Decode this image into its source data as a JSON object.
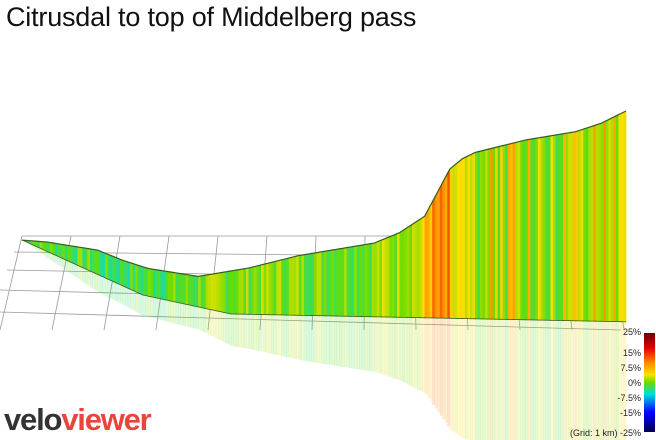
{
  "title": "Citrusdal to top of Middelberg pass",
  "chart_data": {
    "type": "area",
    "title": "Citrusdal to top of Middelberg pass",
    "xlabel": "",
    "ylabel": "",
    "color_scale_label": "gradient",
    "color_scale_ticks": [
      "25%",
      "15%",
      "7.5%",
      "0%",
      "-7.5%",
      "-15%",
      "-25%"
    ],
    "grid_note": "(Grid: 1 km)",
    "profile": {
      "distance_km": [
        0,
        1,
        2,
        3,
        4,
        5,
        6,
        7,
        8,
        9,
        10,
        11,
        12,
        13,
        14,
        15,
        16,
        17,
        17.5,
        18,
        19,
        20,
        21,
        22,
        23,
        24
      ],
      "elevation_rel": [
        0.38,
        0.37,
        0.35,
        0.33,
        0.28,
        0.24,
        0.22,
        0.2,
        0.22,
        0.24,
        0.27,
        0.3,
        0.32,
        0.34,
        0.36,
        0.41,
        0.49,
        0.72,
        0.77,
        0.8,
        0.83,
        0.86,
        0.88,
        0.9,
        0.94,
        1.0
      ]
    }
  },
  "logo": {
    "part1": "velo",
    "part2": "viewer"
  },
  "colors": {
    "outline": "#3a5a1a",
    "grid": "#999999"
  }
}
